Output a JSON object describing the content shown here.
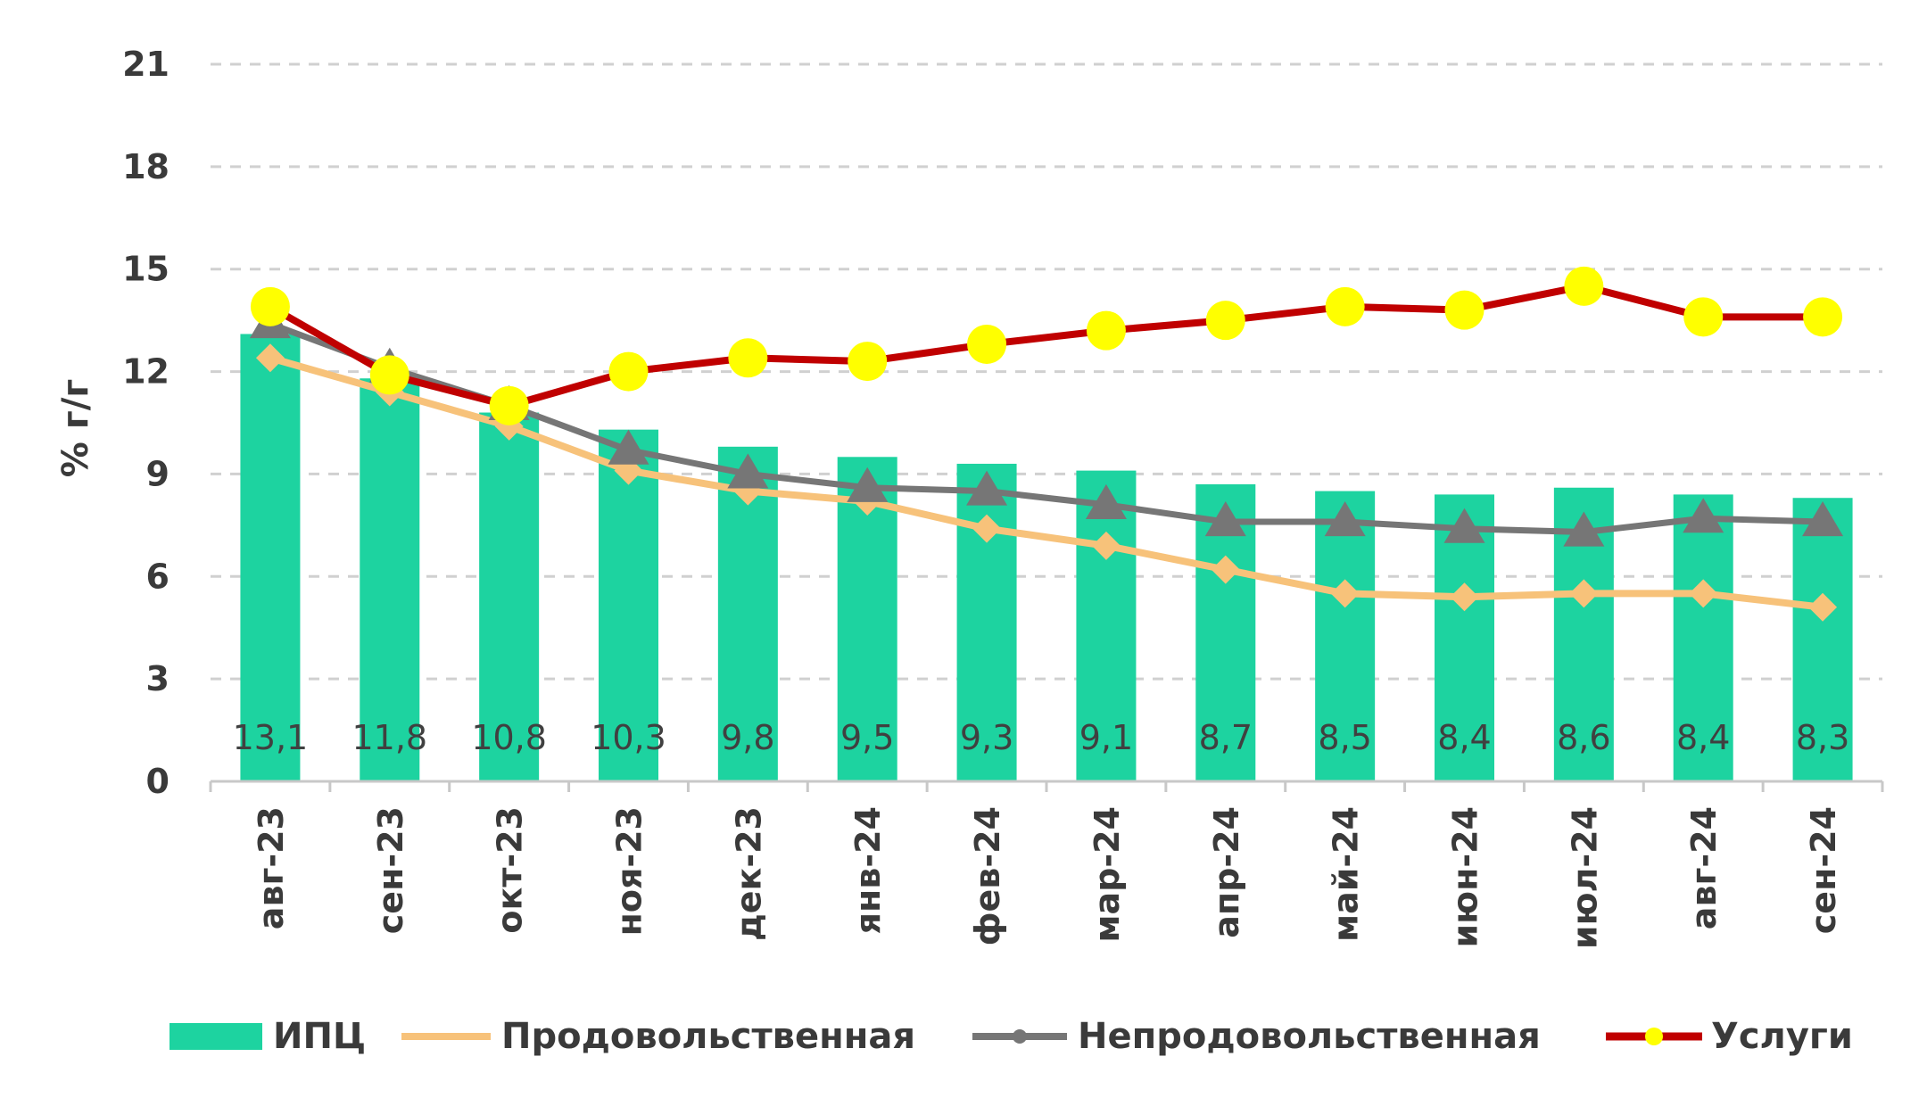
{
  "chart_data": {
    "type": "bar",
    "ylabel": "% г/г",
    "ylim": [
      0,
      21
    ],
    "yticks": [
      0,
      3,
      6,
      9,
      12,
      15,
      18,
      21
    ],
    "grid": true,
    "legend_position": "bottom",
    "categories": [
      "авг-23",
      "сен-23",
      "окт-23",
      "ноя-23",
      "дек-23",
      "янв-24",
      "фев-24",
      "мар-24",
      "апр-24",
      "май-24",
      "июн-24",
      "июл-24",
      "авг-24",
      "сен-24"
    ],
    "bar_series": {
      "name": "ИПЦ",
      "color": "#1dd3a0",
      "values": [
        13.1,
        11.8,
        10.8,
        10.3,
        9.8,
        9.5,
        9.3,
        9.1,
        8.7,
        8.5,
        8.4,
        8.6,
        8.4,
        8.3
      ],
      "labels": [
        "13,1",
        "11,8",
        "10,8",
        "10,3",
        "9,8",
        "9,5",
        "9,3",
        "9,1",
        "8,7",
        "8,5",
        "8,4",
        "8,6",
        "8,4",
        "8,3"
      ]
    },
    "line_series": [
      {
        "name": "Продовольственная",
        "color": "#f7c27a",
        "marker": "diamond",
        "values": [
          12.4,
          11.4,
          10.4,
          9.1,
          8.5,
          8.2,
          7.4,
          6.9,
          6.2,
          5.5,
          5.4,
          5.5,
          5.5,
          5.1
        ]
      },
      {
        "name": "Непродовольственная",
        "color": "#767676",
        "marker": "triangle",
        "values": [
          13.4,
          12.1,
          11.0,
          9.7,
          9.0,
          8.6,
          8.5,
          8.1,
          7.6,
          7.6,
          7.4,
          7.3,
          7.7,
          7.6
        ]
      },
      {
        "name": "Услуги",
        "color": "#c00000",
        "marker_color": "#ffff00",
        "marker": "circle",
        "values": [
          13.9,
          11.9,
          11.0,
          12.0,
          12.4,
          12.3,
          12.8,
          13.2,
          13.5,
          13.9,
          13.8,
          14.5,
          13.6,
          13.6
        ]
      }
    ]
  }
}
